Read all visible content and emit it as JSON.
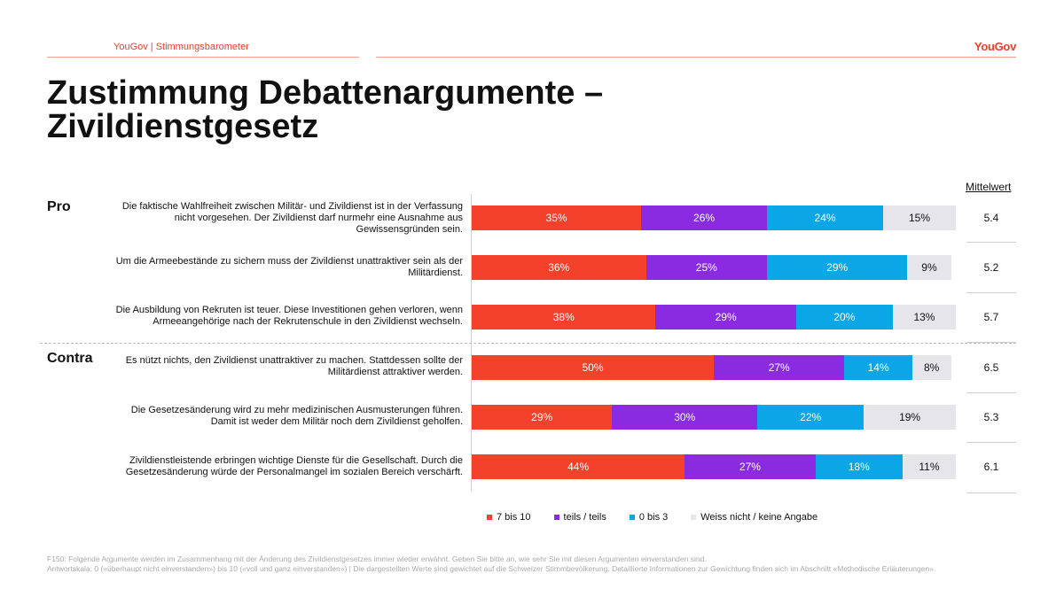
{
  "header": {
    "source_label": "YouGov | Stimmungsbarometer",
    "logo_text": "YouGov"
  },
  "title": "Zustimmung Debattenargumente – Zivildienstgesetz",
  "sections": {
    "pro": "Pro",
    "contra": "Contra"
  },
  "mean_header": "Mittelwert",
  "colors": {
    "agree": "#f4412b",
    "partial": "#8a2be2",
    "disagree": "#0aa6e6",
    "unknown": "#e6e6ea"
  },
  "chart_data": {
    "type": "bar",
    "orientation": "horizontal",
    "stacked": true,
    "unit": "%",
    "categories": [
      "Die faktische Wahlfreiheit zwischen Militär- und Zivildienst ist in der Verfassung nicht vorgesehen. Der Zivildienst darf nurmehr eine Ausnahme aus Gewissensgründen sein.",
      "Um die Armeebestände zu sichern muss der Zivildienst unattraktiver sein als der Militärdienst.",
      "Die Ausbildung von Rekruten ist teuer. Diese Investitionen gehen verloren, wenn Armeeangehörige nach der Rekrutenschule in den Zivildienst wechseln.",
      "Es nützt nichts, den Zivildienst unattraktiver zu machen. Stattdessen sollte der Militärdienst attraktiver werden.",
      "Die Gesetzesänderung wird zu mehr medizinischen Ausmusterungen führen. Damit ist weder dem Militär noch dem Zivildienst geholfen.",
      "Zivildienstleistende erbringen wichtige Dienste für die Gesellschaft. Durch die Gesetzesänderung würde der Personalmangel im sozialen Bereich verschärft."
    ],
    "series": [
      {
        "name": "7 bis 10",
        "values": [
          35,
          36,
          38,
          50,
          29,
          44
        ],
        "labels": [
          "35%",
          "36%",
          "38%",
          "50%",
          "29%",
          "44%"
        ]
      },
      {
        "name": "teils / teils",
        "values": [
          26,
          25,
          29,
          27,
          30,
          27
        ],
        "labels": [
          "26%",
          "25%",
          "29%",
          "27%",
          "30%",
          "27%"
        ]
      },
      {
        "name": "0 bis 3",
        "values": [
          24,
          29,
          20,
          14,
          22,
          18
        ],
        "labels": [
          "24%",
          "29%",
          "20%",
          "14%",
          "22%",
          "18%"
        ]
      },
      {
        "name": "Weiss nicht / keine Angabe",
        "values": [
          15,
          9,
          13,
          8,
          19,
          11
        ],
        "labels": [
          "15%",
          "9%",
          "13%",
          "8%",
          "19%",
          "11%"
        ]
      }
    ],
    "means": [
      "5.4",
      "5.2",
      "5.7",
      "6.5",
      "5.3",
      "6.1"
    ],
    "xlim": [
      0,
      100
    ],
    "legend_position": "bottom"
  },
  "footnote": {
    "line1": "F150: Folgende Argumente werden im Zusammenhang mit der Änderung des Zivildienstgesetzes immer wieder erwähnt. Geben Sie bitte an, wie sehr Sie mit diesen Argumenten einverstanden sind.",
    "line2": "Antwortskala: 0 («überhaupt nicht einverstanden») bis 10 («voll und ganz einverstanden») | Die dargestellten Werte sind gewichtet auf die Schweizer Stimmbevölkerung. Detaillierte Informationen zur Gewichtung finden sich im Abschnitt «Methodische Erläuterungen»."
  }
}
